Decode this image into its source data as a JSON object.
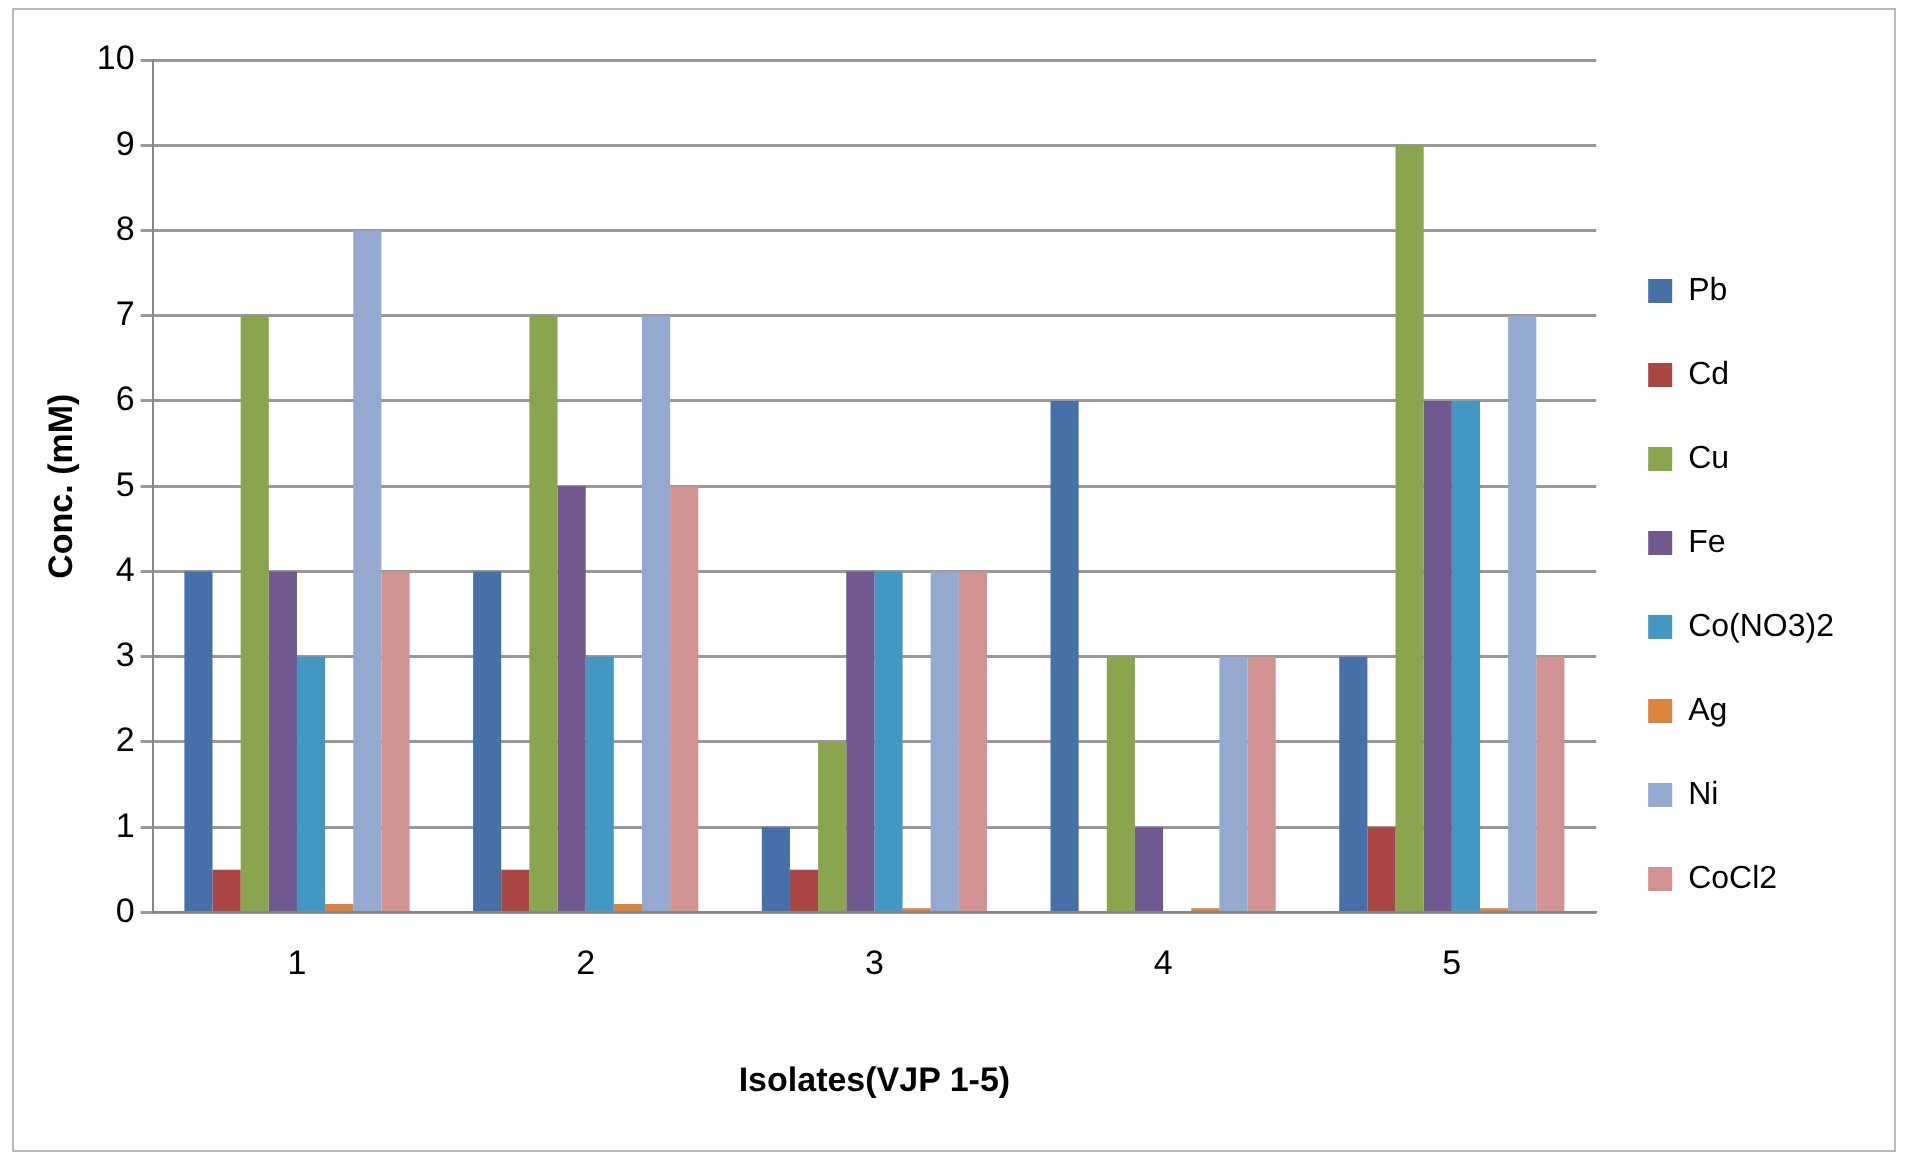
{
  "chart_data": {
    "type": "bar",
    "xlabel": "Isolates(VJP 1-5)",
    "ylabel": "Conc. (mM)",
    "categories": [
      "1",
      "2",
      "3",
      "4",
      "5"
    ],
    "series": [
      {
        "name": "Pb",
        "color": "#4571a8",
        "values": [
          4,
          4,
          1,
          6,
          3
        ]
      },
      {
        "name": "Cd",
        "color": "#a94543",
        "values": [
          0.5,
          0.5,
          0.5,
          0,
          1
        ]
      },
      {
        "name": "Cu",
        "color": "#89a54e",
        "values": [
          7,
          7,
          2,
          3,
          9
        ]
      },
      {
        "name": "Fe",
        "color": "#71588f",
        "values": [
          4,
          5,
          4,
          1,
          6
        ]
      },
      {
        "name": "Co(NO3)2",
        "color": "#4298c3",
        "values": [
          3,
          3,
          4,
          0,
          6
        ]
      },
      {
        "name": "Ag",
        "color": "#db843d",
        "values": [
          0.1,
          0.1,
          0.05,
          0.05,
          0.05
        ]
      },
      {
        "name": "Ni",
        "color": "#93a9cf",
        "values": [
          8,
          7,
          4,
          3,
          7
        ]
      },
      {
        "name": "CoCl2",
        "color": "#d19392",
        "values": [
          4,
          5,
          4,
          3,
          3
        ]
      }
    ],
    "ylim": [
      0,
      10
    ],
    "yticks": [
      0,
      1,
      2,
      3,
      4,
      5,
      6,
      7,
      8,
      9,
      10
    ],
    "grid": "y",
    "legend": "right"
  }
}
